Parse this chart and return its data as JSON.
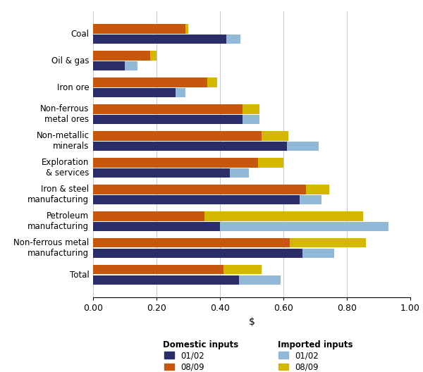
{
  "categories": [
    "Coal",
    "Oil & gas",
    "Iron ore",
    "Non-ferrous\nmetal ores",
    "Non-metallic\nminerals",
    "Exploration\n& services",
    "Iron & steel\nmanufacturing",
    "Petroleum\nmanufacturing",
    "Non-ferrous metal\nmanufacturing",
    "Total"
  ],
  "domestic_0102": [
    0.42,
    0.1,
    0.26,
    0.47,
    0.61,
    0.43,
    0.65,
    0.4,
    0.66,
    0.46
  ],
  "domestic_0809": [
    0.29,
    0.18,
    0.36,
    0.47,
    0.53,
    0.52,
    0.67,
    0.35,
    0.62,
    0.41
  ],
  "imported_0102": [
    0.045,
    0.04,
    0.03,
    0.055,
    0.1,
    0.06,
    0.07,
    0.53,
    0.1,
    0.13
  ],
  "imported_0809": [
    0.01,
    0.02,
    0.03,
    0.055,
    0.085,
    0.08,
    0.075,
    0.5,
    0.24,
    0.12
  ],
  "colors": {
    "domestic_0102": "#2b2d6b",
    "domestic_0809": "#c8570e",
    "imported_0102": "#92b8d8",
    "imported_0809": "#d4b800"
  },
  "xlim": [
    0.0,
    1.0
  ],
  "xticks": [
    0.0,
    0.2,
    0.4,
    0.6,
    0.8,
    1.0
  ],
  "xlabel": "$",
  "bar_height": 0.35,
  "figsize": [
    6.0,
    5.28
  ],
  "dpi": 100
}
